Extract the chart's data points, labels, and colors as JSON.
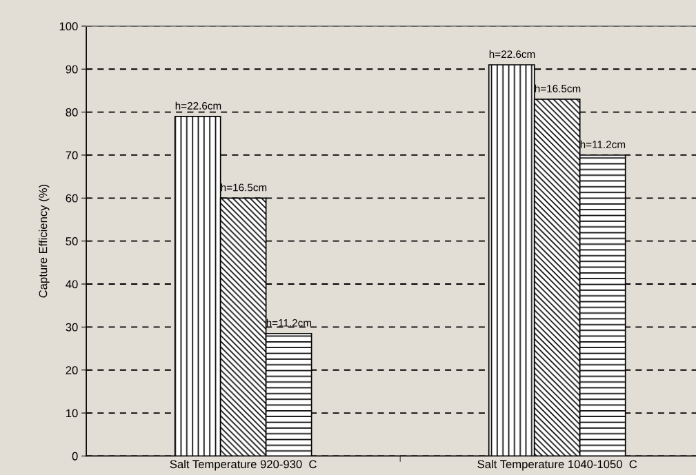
{
  "chart_data": {
    "type": "bar",
    "ylabel": "Capture Efficiency (%)",
    "categories": [
      "Salt Temperature 920-930  C",
      "Salt Temperature 1040-1050  C"
    ],
    "series": [
      {
        "name": "h=22.6cm",
        "color": "#000000",
        "values": [
          79,
          91
        ]
      },
      {
        "name": "h=16.5cm",
        "color": "#000000",
        "values": [
          60,
          83
        ]
      },
      {
        "name": "h=11.2cm",
        "color": "#000000",
        "values": [
          28.5,
          70
        ]
      }
    ],
    "ylim": [
      0,
      100
    ],
    "yticks": [
      0,
      10,
      20,
      30,
      40,
      50,
      60,
      70,
      80,
      90,
      100
    ],
    "grid": "y",
    "legend": false
  }
}
